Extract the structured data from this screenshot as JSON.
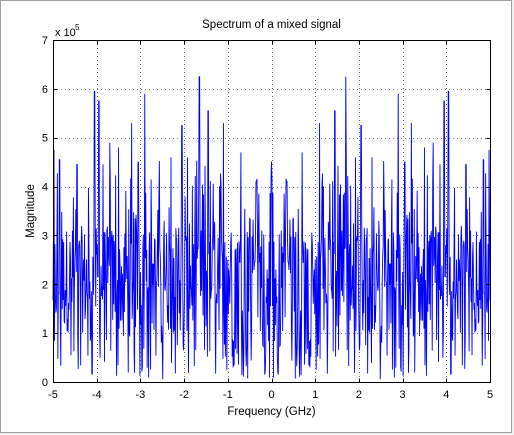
{
  "chart_data": {
    "type": "line",
    "title": "Spectrum of a mixed signal",
    "xlabel": "Frequency (GHz)",
    "ylabel": "Magnitude",
    "xlim": [
      -5,
      5
    ],
    "ylim": [
      0,
      7
    ],
    "y_exponent_label": "x 10",
    "y_exponent_power": "5",
    "y_scale_factor": 100000,
    "x_ticks": [
      -5,
      -4,
      -3,
      -2,
      -1,
      0,
      1,
      2,
      3,
      4,
      5
    ],
    "y_ticks": [
      0,
      1,
      2,
      3,
      4,
      5,
      6,
      7
    ],
    "grid": true,
    "grid_style": "dotted",
    "series": [
      {
        "color": "#0000ff",
        "peaks": [
          {
            "x": -4.98,
            "y": 4.75
          },
          {
            "x": -4.85,
            "y": 4.55
          },
          {
            "x": -4.45,
            "y": 4.45
          },
          {
            "x": -4.05,
            "y": 5.95
          },
          {
            "x": -3.95,
            "y": 5.75
          },
          {
            "x": -3.7,
            "y": 4.9
          },
          {
            "x": -3.5,
            "y": 4.8
          },
          {
            "x": -3.2,
            "y": 5.3
          },
          {
            "x": -3.05,
            "y": 4.5
          },
          {
            "x": -2.9,
            "y": 5.9
          },
          {
            "x": -2.3,
            "y": 4.6
          },
          {
            "x": -2.05,
            "y": 5.25
          },
          {
            "x": -1.65,
            "y": 6.25
          },
          {
            "x": -1.45,
            "y": 5.55
          },
          {
            "x": -1.1,
            "y": 5.3
          },
          {
            "x": -0.7,
            "y": 4.7
          },
          {
            "x": -0.35,
            "y": 4.1
          },
          {
            "x": 0.35,
            "y": 4.1
          },
          {
            "x": 0.7,
            "y": 4.7
          },
          {
            "x": 1.1,
            "y": 5.3
          },
          {
            "x": 1.45,
            "y": 5.55
          },
          {
            "x": 1.7,
            "y": 6.25
          },
          {
            "x": 2.05,
            "y": 5.25
          },
          {
            "x": 2.3,
            "y": 4.6
          },
          {
            "x": 2.9,
            "y": 5.9
          },
          {
            "x": 3.05,
            "y": 4.5
          },
          {
            "x": 3.2,
            "y": 5.3
          },
          {
            "x": 3.5,
            "y": 4.8
          },
          {
            "x": 3.7,
            "y": 4.9
          },
          {
            "x": 3.95,
            "y": 5.75
          },
          {
            "x": 4.05,
            "y": 5.95
          },
          {
            "x": 4.45,
            "y": 4.45
          },
          {
            "x": 4.85,
            "y": 4.55
          },
          {
            "x": 4.98,
            "y": 4.75
          }
        ],
        "baseline_level": 2.0,
        "min_level": 0.05
      }
    ]
  }
}
